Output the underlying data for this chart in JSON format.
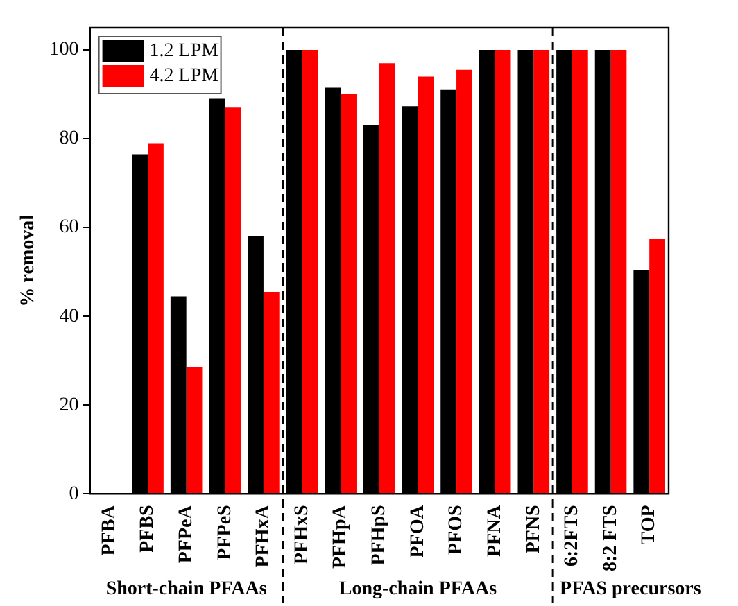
{
  "chart_data": {
    "type": "bar",
    "ylabel": "% removal",
    "categories": [
      "PFBA",
      "PFBS",
      "PFPeA",
      "PFPeS",
      "PFHxA",
      "PFHxS",
      "PFHpA",
      "PFHpS",
      "PFOA",
      "PFOS",
      "PFNA",
      "PFNS",
      "6:2FTS",
      "8:2 FTS",
      "TOP"
    ],
    "series": [
      {
        "name": "1.2 LPM",
        "color": "#000000",
        "values": [
          0,
          76.5,
          44.5,
          89,
          58,
          100,
          91.5,
          83,
          87.3,
          91,
          100,
          100,
          100,
          100,
          50.5
        ]
      },
      {
        "name": "4.2 LPM",
        "color": "#ff0000",
        "values": [
          0,
          79,
          28.5,
          87,
          45.5,
          100,
          90,
          97,
          94,
          95.5,
          100,
          100,
          100,
          100,
          57.5
        ]
      }
    ],
    "ylim": [
      0,
      105
    ],
    "yticks": [
      0,
      20,
      40,
      60,
      80,
      100
    ],
    "grid": false,
    "legend": "top left",
    "annotations": [
      "Short-chain PFAAs",
      "Long-chain PFAAs",
      "PFAS precursors"
    ]
  }
}
